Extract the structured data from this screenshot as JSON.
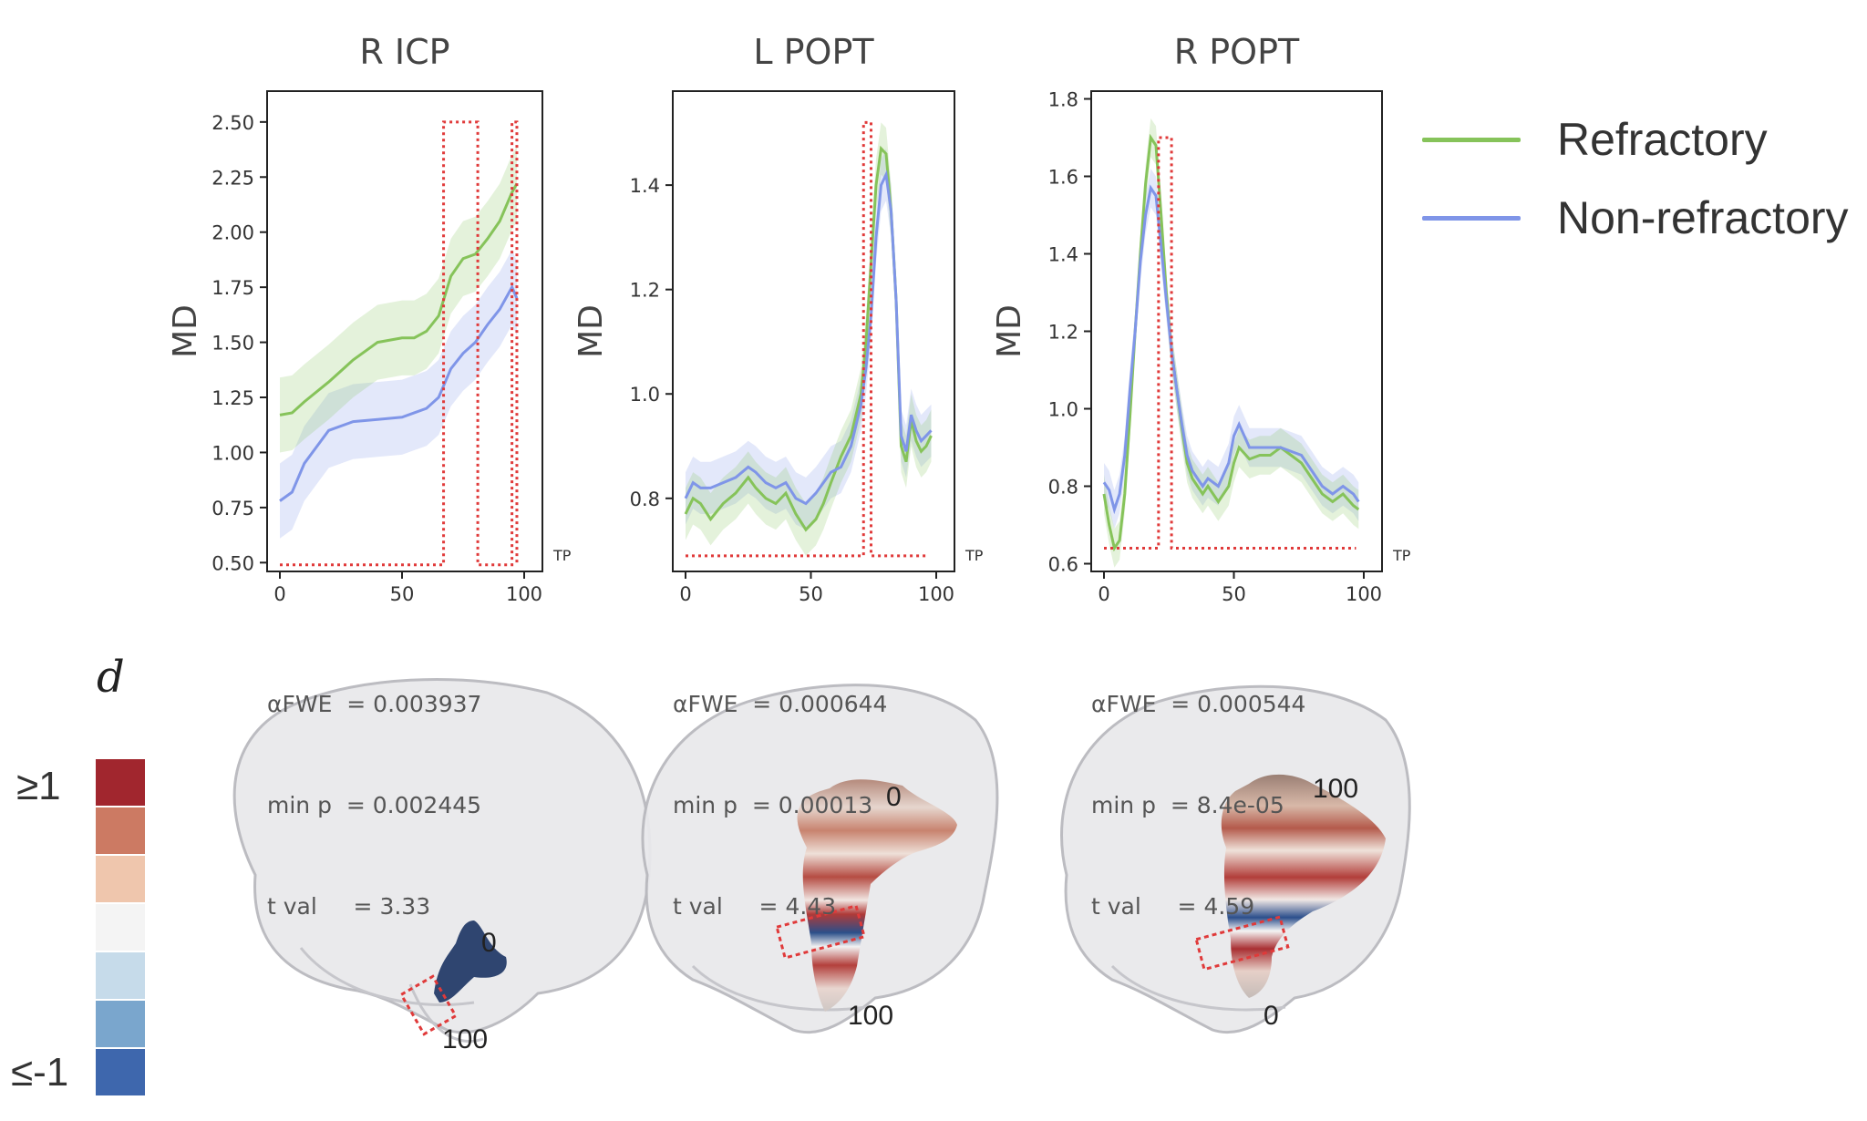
{
  "chart_data": [
    {
      "type": "line",
      "title": "R ICP",
      "ylabel": "MD",
      "xlabel": "TP",
      "xlim": [
        0,
        100
      ],
      "ylim": [
        0.46,
        2.64
      ],
      "xticks": [
        0,
        50,
        100
      ],
      "yticks": [
        "0.50",
        "0.75",
        "1.00",
        "1.25",
        "1.50",
        "1.75",
        "2.00",
        "2.25",
        "2.50"
      ],
      "band": 0.17,
      "series": [
        {
          "name": "Refractory",
          "color": "#86c35a",
          "x": [
            0,
            5,
            10,
            20,
            30,
            40,
            50,
            55,
            60,
            65,
            70,
            75,
            80,
            85,
            90,
            95,
            97
          ],
          "y": [
            1.17,
            1.18,
            1.23,
            1.32,
            1.42,
            1.5,
            1.52,
            1.52,
            1.55,
            1.62,
            1.8,
            1.88,
            1.9,
            1.97,
            2.05,
            2.18,
            2.22
          ]
        },
        {
          "name": "Non-refractory",
          "color": "#7f95e8",
          "x": [
            0,
            5,
            10,
            20,
            30,
            40,
            50,
            55,
            60,
            65,
            70,
            75,
            80,
            85,
            90,
            95,
            97
          ],
          "y": [
            0.78,
            0.82,
            0.95,
            1.1,
            1.14,
            1.15,
            1.16,
            1.18,
            1.2,
            1.25,
            1.38,
            1.45,
            1.5,
            1.58,
            1.65,
            1.75,
            1.7
          ]
        }
      ],
      "sig_regions": [
        [
          67,
          81,
          2.5
        ],
        [
          82,
          95,
          0.49
        ],
        [
          95,
          97,
          2.5
        ]
      ],
      "sig_baseline": 0.49,
      "stats": {
        "alpha": "αFWE  = 0.003937",
        "minp": "min p  = 0.002445",
        "tval": "t val     = 3.33"
      }
    },
    {
      "type": "line",
      "title": "L POPT",
      "ylabel": "MD",
      "xlabel": "TP",
      "xlim": [
        0,
        100
      ],
      "ylim": [
        0.66,
        1.58
      ],
      "xticks": [
        0,
        50,
        100
      ],
      "yticks": [
        "0.8",
        "1.0",
        "1.2",
        "1.4"
      ],
      "band": 0.05,
      "series": [
        {
          "name": "Refractory",
          "color": "#86c35a",
          "x": [
            0,
            3,
            6,
            10,
            15,
            20,
            25,
            28,
            32,
            36,
            40,
            44,
            48,
            52,
            55,
            58,
            62,
            66,
            70,
            72,
            74,
            76,
            78,
            80,
            82,
            84,
            86,
            88,
            90,
            92,
            94,
            96,
            98
          ],
          "y": [
            0.77,
            0.8,
            0.79,
            0.76,
            0.79,
            0.81,
            0.84,
            0.82,
            0.8,
            0.79,
            0.81,
            0.77,
            0.74,
            0.76,
            0.79,
            0.83,
            0.88,
            0.92,
            1.0,
            1.1,
            1.25,
            1.4,
            1.47,
            1.46,
            1.35,
            1.18,
            0.9,
            0.87,
            0.95,
            0.91,
            0.89,
            0.9,
            0.92
          ]
        },
        {
          "name": "Non-refractory",
          "color": "#7f95e8",
          "x": [
            0,
            3,
            6,
            10,
            15,
            20,
            25,
            28,
            32,
            36,
            40,
            44,
            48,
            52,
            55,
            58,
            62,
            66,
            70,
            72,
            74,
            76,
            78,
            80,
            82,
            84,
            86,
            88,
            90,
            92,
            94,
            96,
            98
          ],
          "y": [
            0.8,
            0.83,
            0.82,
            0.82,
            0.83,
            0.84,
            0.86,
            0.85,
            0.83,
            0.82,
            0.83,
            0.8,
            0.79,
            0.81,
            0.83,
            0.85,
            0.86,
            0.9,
            0.98,
            1.05,
            1.15,
            1.3,
            1.4,
            1.42,
            1.35,
            1.18,
            0.92,
            0.89,
            0.96,
            0.93,
            0.91,
            0.92,
            0.93
          ]
        }
      ],
      "sig_regions": [
        [
          71,
          74,
          1.52
        ]
      ],
      "sig_baseline": 0.69,
      "stats": {
        "alpha": "αFWE  = 0.000644",
        "minp": "min p  = 0.00013",
        "tval": "t val     = 4.43"
      }
    },
    {
      "type": "line",
      "title": "R POPT",
      "ylabel": "MD",
      "xlabel": "TP",
      "xlim": [
        0,
        100
      ],
      "ylim": [
        0.58,
        1.82
      ],
      "xticks": [
        0,
        50,
        100
      ],
      "yticks": [
        "0.6",
        "0.8",
        "1.0",
        "1.2",
        "1.4",
        "1.6",
        "1.8"
      ],
      "band": 0.05,
      "series": [
        {
          "name": "Refractory",
          "color": "#86c35a",
          "x": [
            0,
            2,
            4,
            6,
            8,
            10,
            12,
            14,
            16,
            18,
            20,
            22,
            24,
            26,
            28,
            30,
            32,
            34,
            36,
            38,
            40,
            44,
            48,
            50,
            52,
            56,
            60,
            64,
            68,
            72,
            76,
            80,
            84,
            88,
            92,
            96,
            98
          ],
          "y": [
            0.78,
            0.7,
            0.64,
            0.66,
            0.78,
            0.98,
            1.2,
            1.4,
            1.58,
            1.7,
            1.68,
            1.5,
            1.3,
            1.15,
            1.05,
            0.95,
            0.86,
            0.82,
            0.8,
            0.78,
            0.8,
            0.76,
            0.8,
            0.86,
            0.9,
            0.87,
            0.88,
            0.88,
            0.9,
            0.88,
            0.86,
            0.82,
            0.78,
            0.76,
            0.78,
            0.75,
            0.74
          ]
        },
        {
          "name": "Non-refractory",
          "color": "#7f95e8",
          "x": [
            0,
            2,
            4,
            6,
            8,
            10,
            12,
            14,
            16,
            18,
            20,
            22,
            24,
            26,
            28,
            30,
            32,
            34,
            36,
            38,
            40,
            44,
            48,
            50,
            52,
            56,
            60,
            64,
            68,
            72,
            76,
            80,
            84,
            88,
            92,
            96,
            98
          ],
          "y": [
            0.81,
            0.79,
            0.74,
            0.78,
            0.88,
            1.05,
            1.2,
            1.38,
            1.5,
            1.57,
            1.55,
            1.42,
            1.28,
            1.15,
            1.05,
            0.96,
            0.88,
            0.84,
            0.82,
            0.8,
            0.82,
            0.8,
            0.86,
            0.93,
            0.96,
            0.9,
            0.9,
            0.9,
            0.9,
            0.89,
            0.88,
            0.84,
            0.8,
            0.78,
            0.8,
            0.78,
            0.76
          ]
        }
      ],
      "sig_regions": [
        [
          21,
          26,
          1.7
        ]
      ],
      "sig_baseline": 0.64,
      "stats": {
        "alpha": "αFWE  = 0.000544",
        "minp": "min p  = 8.4e-05",
        "tval": "t val     = 4.59"
      }
    }
  ],
  "legend": [
    {
      "label": "Refractory",
      "color": "#86c35a"
    },
    {
      "label": "Non-refractory",
      "color": "#7f95e8"
    }
  ],
  "scale": {
    "title": "d",
    "top_label": "≥1",
    "bottom_label": "≤-1",
    "colors": [
      "#a1262e",
      "#cc7a63",
      "#efc6ad",
      "#f4f4f4",
      "#c6dbea",
      "#7aa6cd",
      "#3e67ad"
    ]
  },
  "brains": [
    {
      "start_label": "0",
      "end_label": "100"
    },
    {
      "start_label": "0",
      "end_label": "100"
    },
    {
      "start_label": "100",
      "end_label": "0"
    }
  ]
}
